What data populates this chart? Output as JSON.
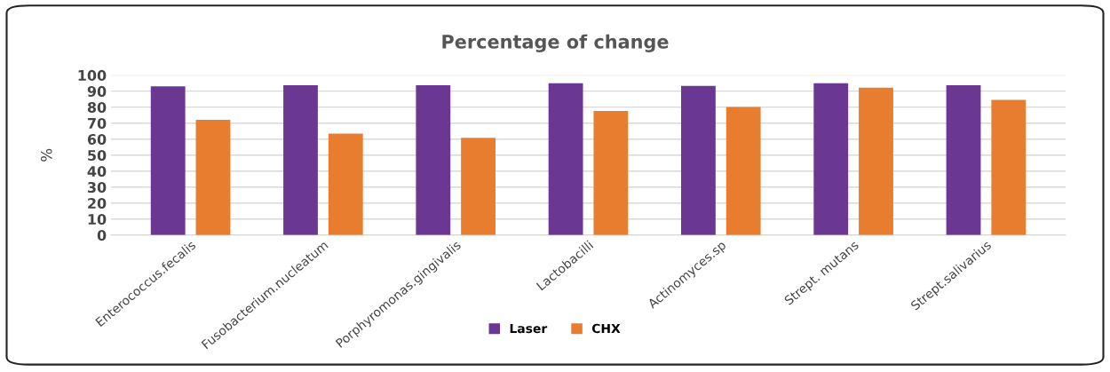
{
  "chart_data": {
    "type": "bar",
    "title": "Percentage of change",
    "ylabel": "%",
    "categories": [
      "Enterococcus.fecalis",
      "Fusobacterium.nucleatum",
      "Porphyromonas.gingivalis",
      "Lactobacilli",
      "Actinomyces.sp",
      "Strept. mutans",
      "Strept.salivarius"
    ],
    "series": [
      {
        "name": "Laser",
        "color": "#6a3793",
        "values": [
          93,
          93.7,
          93.7,
          95,
          93.3,
          95,
          93.7
        ]
      },
      {
        "name": "CHX",
        "color": "#e87d30",
        "values": [
          72,
          63.4,
          60.8,
          77.6,
          80.1,
          92.1,
          84.6
        ]
      }
    ],
    "ylim": [
      0,
      100
    ],
    "yticks": [
      0,
      10,
      20,
      30,
      40,
      50,
      60,
      70,
      80,
      90,
      100
    ],
    "grid": "y",
    "legend": "bottom"
  }
}
